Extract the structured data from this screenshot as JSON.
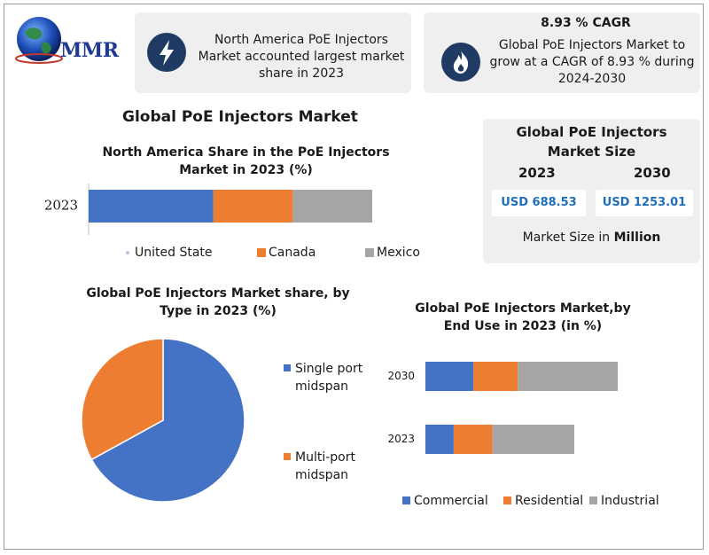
{
  "logo": {
    "text": "MMR"
  },
  "highlights": {
    "region_text": "North America PoE Injectors Market accounted largest market share in 2023",
    "cagr_title": "8.93 % CAGR",
    "cagr_text": "Global PoE Injectors Market to grow at a CAGR of 8.93 % during 2024-2030"
  },
  "market_size": {
    "title": "Global PoE Injectors Market Size",
    "year_a": "2023",
    "year_b": "2030",
    "value_a": "USD 688.53",
    "value_b": "USD 1253.01",
    "unit_prefix": "Market Size in ",
    "unit_bold": "Million"
  },
  "colors": {
    "blue": "#4472c4",
    "orange": "#ed7d31",
    "gray": "#a5a5a5",
    "navy": "#1f3a63"
  },
  "main_title": "Global PoE Injectors Market",
  "chart_data": [
    {
      "type": "bar",
      "orientation": "horizontal",
      "stacked": true,
      "title": "North America Share in the PoE Injectors Market in 2023 (%)",
      "categories": [
        "2023"
      ],
      "series": [
        {
          "name": "United State",
          "values": [
            44
          ]
        },
        {
          "name": "Canada",
          "values": [
            28
          ]
        },
        {
          "name": "Mexico",
          "values": [
            28
          ]
        }
      ],
      "legend": "bottom"
    },
    {
      "type": "pie",
      "title": "Global PoE Injectors Market share, by Type in 2023  (%)",
      "labels": [
        "Single port midspan",
        "Multi-port midspan"
      ],
      "values": [
        67,
        33
      ],
      "legend": "right"
    },
    {
      "type": "bar",
      "orientation": "horizontal",
      "stacked": true,
      "title": "Global PoE Injectors Market,by End Use in 2023 (in %)",
      "categories": [
        "2030",
        "2023"
      ],
      "series": [
        {
          "name": "Commercial",
          "values": [
            25,
            19
          ]
        },
        {
          "name": "Residential",
          "values": [
            23,
            26
          ]
        },
        {
          "name": "Industrial",
          "values": [
            52,
            55
          ]
        }
      ],
      "legend": "bottom"
    }
  ]
}
